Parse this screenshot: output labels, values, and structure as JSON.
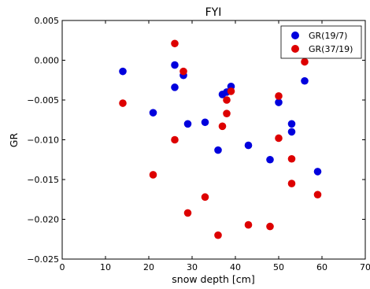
{
  "chart_data": {
    "type": "scatter",
    "title": "FYI",
    "xlabel": "snow depth [cm]",
    "ylabel": "GR",
    "xlim": [
      0,
      70
    ],
    "ylim": [
      -0.025,
      0.005
    ],
    "xticks": [
      "0",
      "10",
      "20",
      "30",
      "40",
      "50",
      "60",
      "70"
    ],
    "yticks": [
      "0.005",
      "0.000",
      "−0.005",
      "−0.010",
      "−0.015",
      "−0.020",
      "−0.025"
    ],
    "grid": false,
    "legend_position": "top-right",
    "series": [
      {
        "name": "GR(19/7)",
        "color": "#0000dd",
        "points": [
          [
            14,
            -0.0014
          ],
          [
            21,
            -0.0066
          ],
          [
            26,
            -0.0006
          ],
          [
            26,
            -0.0034
          ],
          [
            28,
            -0.0019
          ],
          [
            29,
            -0.008
          ],
          [
            33,
            -0.0078
          ],
          [
            36,
            -0.0113
          ],
          [
            37,
            -0.0043
          ],
          [
            38,
            -0.004
          ],
          [
            39,
            -0.0033
          ],
          [
            43,
            -0.0107
          ],
          [
            48,
            -0.0125
          ],
          [
            50,
            -0.0053
          ],
          [
            53,
            -0.008
          ],
          [
            53,
            -0.009
          ],
          [
            56,
            -0.0026
          ],
          [
            59,
            -0.014
          ]
        ]
      },
      {
        "name": "GR(37/19)",
        "color": "#dd0000",
        "points": [
          [
            14,
            -0.0054
          ],
          [
            21,
            -0.0144
          ],
          [
            26,
            0.0021
          ],
          [
            26,
            -0.01
          ],
          [
            28,
            -0.0014
          ],
          [
            29,
            -0.0192
          ],
          [
            33,
            -0.0172
          ],
          [
            36,
            -0.022
          ],
          [
            37,
            -0.0083
          ],
          [
            38,
            -0.005
          ],
          [
            38,
            -0.0067
          ],
          [
            39,
            -0.0039
          ],
          [
            43,
            -0.0207
          ],
          [
            48,
            -0.0209
          ],
          [
            50,
            -0.0045
          ],
          [
            50,
            -0.0098
          ],
          [
            53,
            -0.0124
          ],
          [
            53,
            -0.0155
          ],
          [
            56,
            -0.0002
          ],
          [
            59,
            -0.0169
          ]
        ]
      }
    ]
  }
}
